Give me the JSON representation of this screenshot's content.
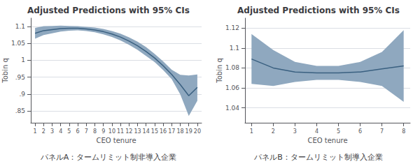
{
  "chart_data": [
    {
      "type": "line",
      "title": "Adjusted Predictions with 95% CIs",
      "xlabel": "CEO tenure",
      "ylabel": "Tobin q",
      "caption": "パネルA：タームリミット制非導入企業",
      "x": [
        1,
        2,
        3,
        4,
        5,
        6,
        7,
        8,
        9,
        10,
        11,
        12,
        13,
        14,
        15,
        16,
        17,
        18,
        19,
        20
      ],
      "series": [
        {
          "type": "line",
          "color": "#3a6080",
          "values": [
            1.08,
            1.088,
            1.091,
            1.094,
            1.095,
            1.095,
            1.093,
            1.09,
            1.085,
            1.078,
            1.069,
            1.057,
            1.043,
            1.026,
            1.007,
            0.984,
            0.958,
            0.928,
            0.895,
            0.92
          ]
        },
        {
          "type": "band",
          "color": "#8fa8bf",
          "upper": [
            1.096,
            1.101,
            1.102,
            1.103,
            1.102,
            1.101,
            1.099,
            1.097,
            1.093,
            1.087,
            1.079,
            1.068,
            1.055,
            1.039,
            1.019,
            0.997,
            0.972,
            0.957,
            0.955,
            0.958
          ],
          "lower": [
            1.064,
            1.075,
            1.08,
            1.085,
            1.088,
            1.089,
            1.087,
            1.083,
            1.077,
            1.069,
            1.059,
            1.046,
            1.031,
            1.013,
            0.995,
            0.971,
            0.944,
            0.899,
            0.835,
            0.88
          ]
        }
      ],
      "xlim": [
        0.5,
        20.5
      ],
      "xticks": [
        1,
        2,
        3,
        4,
        5,
        6,
        7,
        8,
        9,
        10,
        11,
        12,
        13,
        14,
        15,
        16,
        17,
        18,
        19,
        20
      ],
      "ylim": [
        0.815,
        1.125
      ],
      "yticks": [
        {
          "value": 0.85,
          "label": ".85"
        },
        {
          "value": 0.9,
          "label": ".9"
        },
        {
          "value": 0.95,
          "label": ".95"
        },
        1,
        1.05,
        1.1
      ],
      "grid": true
    },
    {
      "type": "line",
      "title": "Adjusted Predictions with 95% CIs",
      "xlabel": "CEO tenure",
      "ylabel": "Tobin q",
      "caption": "パネルB：タームリミット制導入企業",
      "x": [
        1,
        2,
        3,
        4,
        5,
        6,
        7,
        8
      ],
      "series": [
        {
          "type": "line",
          "color": "#3a6080",
          "values": [
            1.089,
            1.08,
            1.076,
            1.075,
            1.075,
            1.076,
            1.079,
            1.082
          ]
        },
        {
          "type": "band",
          "color": "#8fa8bf",
          "upper": [
            1.114,
            1.098,
            1.086,
            1.082,
            1.082,
            1.086,
            1.096,
            1.118
          ],
          "lower": [
            1.064,
            1.062,
            1.066,
            1.068,
            1.068,
            1.066,
            1.062,
            1.046
          ]
        }
      ],
      "xlim": [
        0.7,
        8.3
      ],
      "xticks": [
        1,
        2,
        3,
        4,
        5,
        6,
        7,
        8
      ],
      "ylim": [
        1.025,
        1.13
      ],
      "yticks": [
        1.04,
        1.06,
        1.08,
        1.1,
        1.12
      ],
      "grid": true
    }
  ]
}
